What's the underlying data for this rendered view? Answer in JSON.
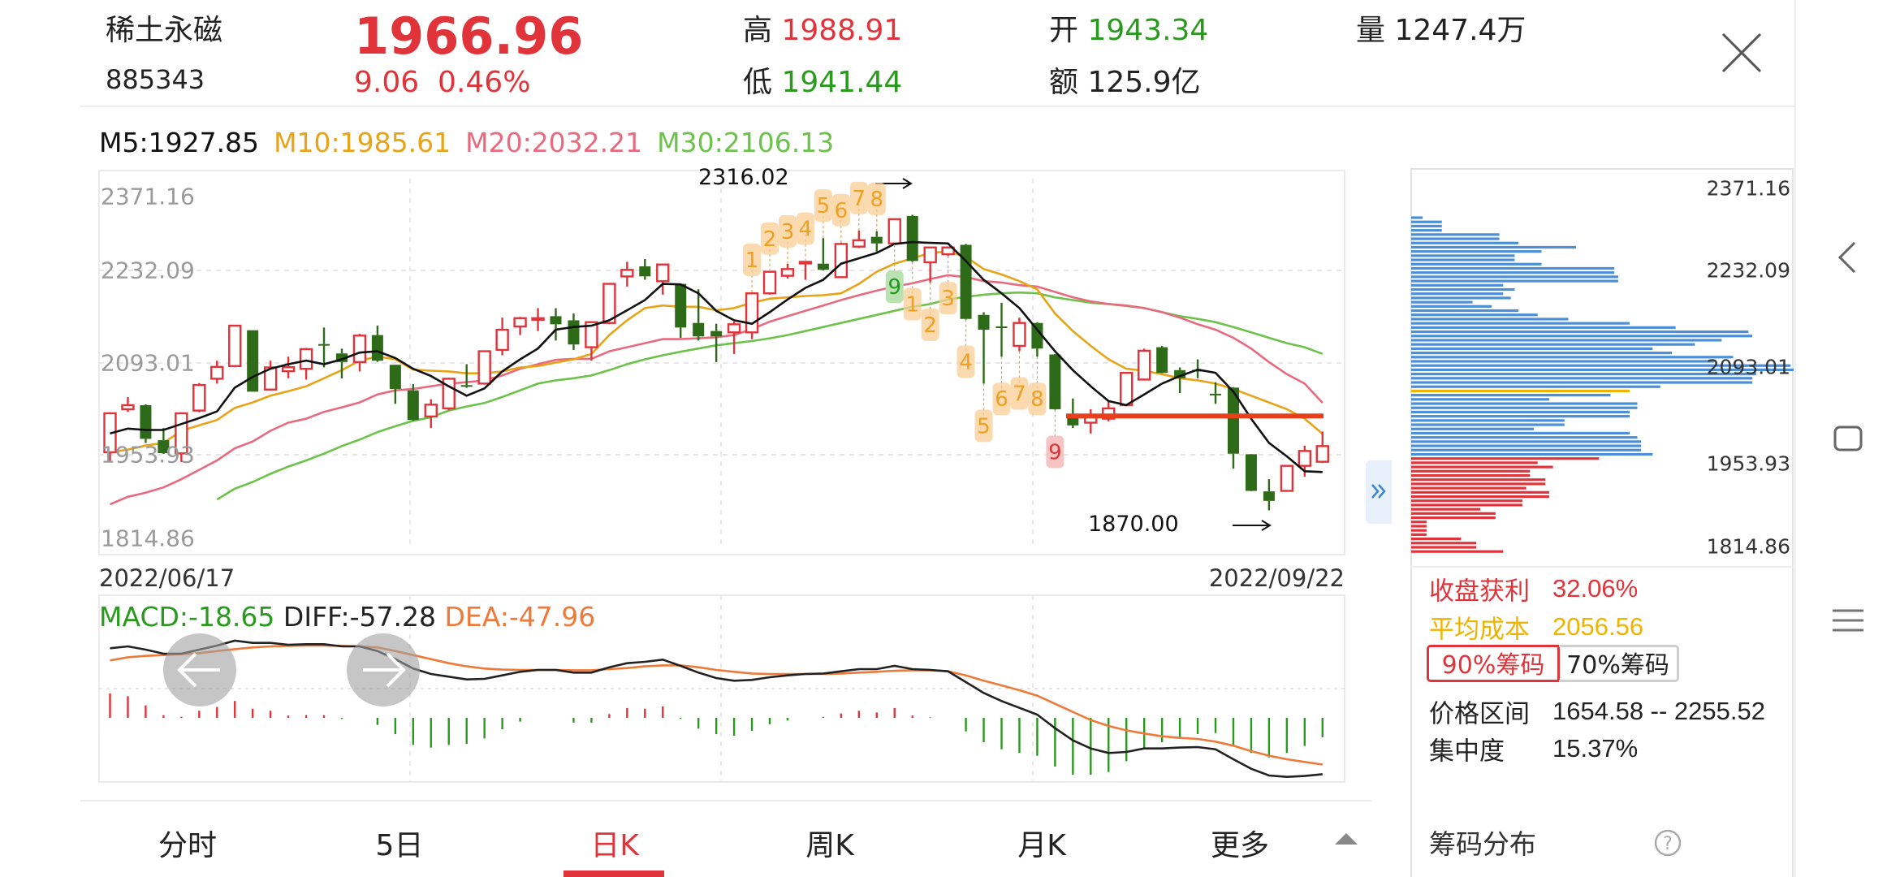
{
  "header": {
    "name": "稀土永磁",
    "code": "885343",
    "price": "1966.96",
    "change": "9.06",
    "change_pct": "0.46%",
    "high_label": "高",
    "high": "1988.91",
    "low_label": "低",
    "low": "1941.44",
    "open_label": "开",
    "open": "1943.34",
    "amount_label": "额",
    "amount": "125.9亿",
    "volume_label": "量",
    "volume": "1247.4万",
    "close_icon": "close-x-icon"
  },
  "ma_legend": [
    {
      "label": "M5:1927.85",
      "color": "#111111"
    },
    {
      "label": "M10:1985.61",
      "color": "#e8a317"
    },
    {
      "label": "M20:2032.21",
      "color": "#e86a7e"
    },
    {
      "label": "M30:2106.13",
      "color": "#6cc24a"
    }
  ],
  "chart_data": {
    "type": "candlestick",
    "y_ticks": [
      "2371.16",
      "2232.09",
      "2093.01",
      "1953.93",
      "1814.86"
    ],
    "ylim": [
      1814.86,
      2371.16
    ],
    "start_date": "2022/06/17",
    "end_date": "2022/09/22",
    "colors": {
      "up": "#e0333a",
      "down": "#2e6b18"
    },
    "candles_ohlc": [
      [
        1957.6,
        2018,
        1943.3,
        2016.5
      ],
      [
        2022.6,
        2040.9,
        2018.6,
        2028.7
      ],
      [
        2028.7,
        2030,
        1971.8,
        1977.9
      ],
      [
        1975.9,
        1994.2,
        1955,
        1956.3
      ],
      [
        1956,
        2018,
        1943,
        2016.5
      ],
      [
        2020.6,
        2062,
        2018,
        2059.2
      ],
      [
        2068.6,
        2095.8,
        2061.3,
        2086.5
      ],
      [
        2087.7,
        2150,
        2086,
        2148.7
      ],
      [
        2141.8,
        2142,
        2049,
        2049.1
      ],
      [
        2052.3,
        2095.8,
        2051,
        2085.7
      ],
      [
        2080,
        2101.9,
        2069.4,
        2086
      ],
      [
        2083.6,
        2115,
        2067.4,
        2113.3
      ],
      [
        2121,
        2145.9,
        2085.7,
        2119
      ],
      [
        2106.8,
        2114,
        2069,
        2093.8
      ],
      [
        2093.8,
        2136.5,
        2079.6,
        2133.7
      ],
      [
        2134.5,
        2148.7,
        2094,
        2095.8
      ],
      [
        2089.7,
        2090,
        2030.8,
        2053.2
      ],
      [
        2051.1,
        2060.5,
        2005,
        2006.4
      ],
      [
        2011.7,
        2037.7,
        1994.2,
        2029.5
      ],
      [
        2023.9,
        2070,
        2021,
        2068.6
      ],
      [
        2059,
        2090.6,
        2055,
        2057
      ],
      [
        2061.3,
        2111,
        2060,
        2110.1
      ],
      [
        2112.1,
        2160.9,
        2104,
        2142.6
      ],
      [
        2147.5,
        2162,
        2134.5,
        2160
      ],
      [
        2158,
        2175.2,
        2140.6,
        2160
      ],
      [
        2163,
        2175,
        2126.3,
        2150.8
      ],
      [
        2156.8,
        2167,
        2112.1,
        2120.3
      ],
      [
        2116.2,
        2155,
        2095.8,
        2154
      ],
      [
        2152.8,
        2213,
        2151,
        2211.8
      ],
      [
        2223,
        2245.1,
        2207.7,
        2232.9
      ],
      [
        2238.2,
        2249.2,
        2218,
        2223.1
      ],
      [
        2215.8,
        2242,
        2195.5,
        2241
      ],
      [
        2211.8,
        2212,
        2130.4,
        2145.9
      ],
      [
        2152.8,
        2203.6,
        2126.3,
        2132.5
      ],
      [
        2140.6,
        2151.6,
        2093.8,
        2132.5
      ],
      [
        2138.6,
        2155,
        2106,
        2150.8
      ],
      [
        2138.6,
        2199,
        2128.3,
        2197.5
      ],
      [
        2197.5,
        2231,
        2195.5,
        2230
      ],
      [
        2224,
        2242,
        2219.9,
        2234.1
      ],
      [
        2243,
        2246,
        2217.9,
        2245
      ],
      [
        2242.3,
        2280.9,
        2232,
        2233
      ],
      [
        2221.9,
        2274,
        2221,
        2272
      ],
      [
        2268,
        2292.3,
        2266,
        2277.6
      ],
      [
        2282.7,
        2291,
        2260.6,
        2272.8
      ],
      [
        2272.8,
        2310,
        2271,
        2309.4
      ],
      [
        2314.2,
        2316.02,
        2245,
        2246.3
      ],
      [
        2244.3,
        2268,
        2213.8,
        2266.7
      ],
      [
        2256.5,
        2268,
        2254,
        2266.7
      ],
      [
        2270.7,
        2272,
        2158,
        2158.9
      ],
      [
        2165,
        2169,
        2061.3,
        2142.6
      ],
      [
        2147.5,
        2183.3,
        2101.9,
        2146.7
      ],
      [
        2118.2,
        2160.9,
        2110.1,
        2152.8
      ],
      [
        2152.8,
        2154,
        2101.9,
        2114.1
      ],
      [
        2105.2,
        2106,
        2022,
        2022.6
      ],
      [
        2014.5,
        2038.9,
        1994.2,
        1998.2
      ],
      [
        2002.3,
        2022.6,
        1986,
        2010.4
      ],
      [
        2008.4,
        2034.8,
        2004.4,
        2023.9
      ],
      [
        2028.7,
        2078,
        2027,
        2077.5
      ],
      [
        2067.4,
        2114,
        2066,
        2110.9
      ],
      [
        2116.2,
        2118,
        2077,
        2077.5
      ],
      [
        2081.6,
        2085.7,
        2047,
        2069.4
      ],
      [
        2082,
        2097.8,
        2069.4,
        2081
      ],
      [
        2046,
        2063.3,
        2030.8,
        2045
      ],
      [
        2055.2,
        2056,
        1933,
        1955.5
      ],
      [
        1954.7,
        1955,
        1899,
        1899.4
      ],
      [
        1898.6,
        1916.9,
        1870,
        1884.3
      ],
      [
        1899.4,
        1938,
        1898,
        1937.2
      ],
      [
        1937.2,
        1967.7,
        1921,
        1959.6
      ],
      [
        1943.34,
        1988.91,
        1941.44,
        1966.96
      ]
    ],
    "ma5": [
      1986.1,
      1993.4,
      1991.3,
      1991.3,
      2000.3,
      2009.2,
      2019.4,
      2055.2,
      2071.5,
      2083.7,
      2090.6,
      2095.9,
      2090.6,
      2097.9,
      2108.1,
      2110.1,
      2099.9,
      2083.7,
      2072.7,
      2057.2,
      2043.0,
      2054.0,
      2079.6,
      2097.9,
      2114.2,
      2142.6,
      2146.7,
      2148.7,
      2156.9,
      2171.9,
      2187.4,
      2211.8,
      2211.0,
      2197.5,
      2171.1,
      2156.9,
      2151.6,
      2169.1,
      2188.2,
      2205.7,
      2217.9,
      2242.3,
      2250.4,
      2258.6,
      2272.0,
      2274.8,
      2273.6,
      2272.8,
      2246.3,
      2217.9,
      2197.5,
      2175.2,
      2142.6,
      2110.1,
      2081.6,
      2057.2,
      2034.9,
      2028.8,
      2045.0,
      2061.3,
      2072.7,
      2082.4,
      2077.6,
      2049.1,
      2008.4,
      1971.8,
      1951.5,
      1929.1,
      1927.85
    ],
    "ma10": [
      1957.6,
      1961.7,
      1967.8,
      1971.8,
      1990.1,
      1998.3,
      2006.4,
      2024.7,
      2032.8,
      2043.0,
      2049.9,
      2057.2,
      2069.4,
      2081.6,
      2095.9,
      2102.0,
      2097.9,
      2082.4,
      2080.8,
      2079.6,
      2076.8,
      2076.8,
      2079.6,
      2085.7,
      2087.7,
      2093.0,
      2097.9,
      2106.0,
      2134.5,
      2156.9,
      2175.2,
      2179.2,
      2177.2,
      2177.2,
      2171.9,
      2175.2,
      2183.3,
      2189.4,
      2191.4,
      2193.5,
      2194.7,
      2197.5,
      2211.8,
      2230.1,
      2242.3,
      2250.4,
      2258.6,
      2260.6,
      2252.5,
      2234.2,
      2226.0,
      2215.9,
      2203.6,
      2167.0,
      2140.6,
      2118.2,
      2097.9,
      2083.7,
      2080.8,
      2075.5,
      2069.4,
      2066.2,
      2061.3,
      2053.2,
      2043.0,
      2032.8,
      2022.7,
      2008.4,
      1985.61
    ],
    "ma20": [
      1879.1,
      1890.5,
      1896.6,
      1904.7,
      1916.9,
      1931.2,
      1945.4,
      1963.7,
      1973.9,
      1990.1,
      2002.3,
      2008.4,
      2018.6,
      2025.5,
      2032.8,
      2045.0,
      2051.1,
      2053.2,
      2057.2,
      2061.3,
      2063.3,
      2066.2,
      2073.5,
      2083.7,
      2090.6,
      2097.1,
      2098.7,
      2098.7,
      2110.1,
      2116.2,
      2122.3,
      2128.4,
      2128.4,
      2129.6,
      2131.3,
      2134.5,
      2143.5,
      2154.8,
      2163.0,
      2171.1,
      2179.2,
      2187.4,
      2194.7,
      2201.6,
      2207.7,
      2212.6,
      2219.1,
      2224.8,
      2222.0,
      2215.9,
      2213.8,
      2209.8,
      2207.7,
      2199.6,
      2191.5,
      2185.4,
      2181.3,
      2179.2,
      2175.2,
      2169.1,
      2160.9,
      2150.8,
      2142.6,
      2130.4,
      2114.2,
      2093.8,
      2075.5,
      2061.3,
      2032.21
    ],
    "ma30": [
      null,
      null,
      null,
      null,
      null,
      null,
      1886.4,
      1902.7,
      1912.9,
      1925.1,
      1936.0,
      1945.4,
      1955.5,
      1967.0,
      1976.7,
      1988.1,
      1997.0,
      2005.2,
      2010.4,
      2020.6,
      2026.7,
      2032.0,
      2041.0,
      2051.1,
      2061.3,
      2066.2,
      2069.4,
      2073.5,
      2081.6,
      2090.6,
      2097.9,
      2104.0,
      2109.3,
      2114.2,
      2119.1,
      2122.3,
      2125.5,
      2129.6,
      2134.5,
      2140.6,
      2146.7,
      2152.8,
      2158.9,
      2165.0,
      2171.1,
      2177.2,
      2181.3,
      2188.2,
      2192.3,
      2195.5,
      2197.5,
      2198.8,
      2197.5,
      2191.4,
      2187.4,
      2183.3,
      2181.3,
      2178.4,
      2175.2,
      2169.1,
      2163.0,
      2158.9,
      2154.0,
      2146.7,
      2138.6,
      2130.4,
      2122.3,
      2116.2,
      2106.13
    ],
    "high_annotation": "2316.02",
    "low_annotation": "1870.00",
    "support_line_price": 2012.5,
    "td_markers": [
      {
        "candle": 37,
        "text": "1",
        "pos": "above",
        "kind": "orange"
      },
      {
        "candle": 38,
        "text": "2",
        "pos": "above",
        "kind": "orange"
      },
      {
        "candle": 39,
        "text": "3",
        "pos": "above",
        "kind": "orange"
      },
      {
        "candle": 40,
        "text": "4",
        "pos": "above",
        "kind": "orange"
      },
      {
        "candle": 41,
        "text": "5",
        "pos": "above",
        "kind": "orange"
      },
      {
        "candle": 42,
        "text": "6",
        "pos": "above",
        "kind": "orange"
      },
      {
        "candle": 43,
        "text": "7",
        "pos": "above",
        "kind": "orange"
      },
      {
        "candle": 44,
        "text": "8",
        "pos": "above",
        "kind": "orange"
      },
      {
        "candle": 45,
        "text": "9",
        "pos": "below",
        "kind": "green"
      },
      {
        "candle": 46,
        "text": "1",
        "pos": "below",
        "kind": "orange"
      },
      {
        "candle": 47,
        "text": "2",
        "pos": "below",
        "kind": "orange"
      },
      {
        "candle": 48,
        "text": "3",
        "pos": "below",
        "kind": "orange"
      },
      {
        "candle": 49,
        "text": "4",
        "pos": "below",
        "kind": "orange"
      },
      {
        "candle": 50,
        "text": "5",
        "pos": "below",
        "kind": "orange"
      },
      {
        "candle": 51,
        "text": "6",
        "pos": "below",
        "kind": "orange"
      },
      {
        "candle": 52,
        "text": "7",
        "pos": "below",
        "kind": "orange"
      },
      {
        "candle": 53,
        "text": "8",
        "pos": "below",
        "kind": "orange"
      },
      {
        "candle": 54,
        "text": "9",
        "pos": "below",
        "kind": "red"
      }
    ]
  },
  "macd": {
    "macd_label": "MACD:-18.65",
    "diff_label": "DIFF:-57.28",
    "dea_label": "DEA:-47.96",
    "colors": {
      "macd": "#2a9a1e",
      "diff": "#222222",
      "dea": "#ee7a3a"
    },
    "diff": [
      63.7,
      65.5,
      62.4,
      58.5,
      58.5,
      62.4,
      66.3,
      71.0,
      68.9,
      68.9,
      67.1,
      67.6,
      67.6,
      65.5,
      65.5,
      61.1,
      53.3,
      44.2,
      39.0,
      36.4,
      33.8,
      34.3,
      37.7,
      41.1,
      42.9,
      42.9,
      40.3,
      40.3,
      45.5,
      49.4,
      50.7,
      52.8,
      46.8,
      40.3,
      35.1,
      32.5,
      33.3,
      35.9,
      37.7,
      39.0,
      39.5,
      41.6,
      43.7,
      43.7,
      46.8,
      43.7,
      42.9,
      41.6,
      31.2,
      20.8,
      13.0,
      6.5,
      0,
      -13.0,
      -24.7,
      -32.5,
      -36.9,
      -35.9,
      -32.5,
      -32.5,
      -31.7,
      -31.2,
      -33.3,
      -42.9,
      -52.0,
      -58.5,
      -59.8,
      -59.0,
      -57.28
    ],
    "dea": [
      52.0,
      55.1,
      56.4,
      57.2,
      58.0,
      59.0,
      61.1,
      62.9,
      64.5,
      65.5,
      66.0,
      66.3,
      66.3,
      66.0,
      65.5,
      64.5,
      61.1,
      57.2,
      53.3,
      49.4,
      46.3,
      44.2,
      43.2,
      42.9,
      42.9,
      42.9,
      42.6,
      42.6,
      43.7,
      44.7,
      46.3,
      47.3,
      47.3,
      45.5,
      42.9,
      41.1,
      39.5,
      39.0,
      39.0,
      39.0,
      39.0,
      39.5,
      40.3,
      41.1,
      42.1,
      42.6,
      42.6,
      41.6,
      37.7,
      32.5,
      28.1,
      23.4,
      18.2,
      10.4,
      2.6,
      -5.2,
      -10.9,
      -15.1,
      -18.2,
      -20.8,
      -22.4,
      -23.4,
      -26.0,
      -29.9,
      -35.1,
      -39.5,
      -42.9,
      -45.5,
      -47.96
    ]
  },
  "nav": {
    "prev_icon": "arrow-left-icon",
    "next_icon": "arrow-right-icon",
    "expand_icon": "double-chevron-right-icon"
  },
  "tabs": [
    {
      "label": "分时",
      "active": false
    },
    {
      "label": "5日",
      "active": false
    },
    {
      "label": "日K",
      "active": true
    },
    {
      "label": "周K",
      "active": false
    },
    {
      "label": "月K",
      "active": false
    },
    {
      "label": "更多",
      "active": false
    }
  ],
  "chips": {
    "price_labels": [
      "2371.16",
      "2232.09",
      "2093.01",
      "1953.93",
      "1814.86"
    ],
    "price_high": 2308.0,
    "price_low": 1827.5,
    "current_price": 1966.96,
    "volumes_pct": [
      3,
      8,
      8,
      8,
      23,
      23,
      28,
      43,
      34,
      27,
      27,
      34,
      53,
      53,
      54,
      54,
      24,
      27,
      24,
      26,
      16,
      21,
      28,
      33,
      41,
      57,
      69,
      88,
      89,
      81,
      74,
      63,
      68,
      84,
      79,
      99,
      100,
      90,
      89,
      89,
      65,
      57,
      52,
      36,
      59,
      59,
      57,
      57,
      40,
      40,
      32,
      57,
      59,
      60,
      60,
      60,
      63,
      49,
      33,
      37,
      31,
      31,
      35,
      35,
      30,
      36,
      36,
      29,
      29,
      18,
      22,
      22,
      4,
      4,
      4,
      4,
      13,
      17,
      17,
      24
    ],
    "colors": {
      "profit": "#e0333a",
      "loss": "#4a8fd8",
      "avg": "#f0b400"
    },
    "profit_label": "收盘获利",
    "profit_value": "32.06%",
    "avg_label": "平均成本",
    "avg_value": "2056.56",
    "avg_price": 2056.56,
    "btn_90": "90%筹码",
    "btn_70": "70%筹码",
    "active_btn": "90%",
    "range_label": "价格区间",
    "range_value": "1654.58 -- 2255.52",
    "concentration_label": "集中度",
    "concentration_value": "15.37%",
    "title": "筹码分布",
    "help_icon": "question-circle-icon"
  },
  "system_nav": [
    "back-chevron-icon",
    "home-square-icon",
    "menu-lines-icon"
  ]
}
